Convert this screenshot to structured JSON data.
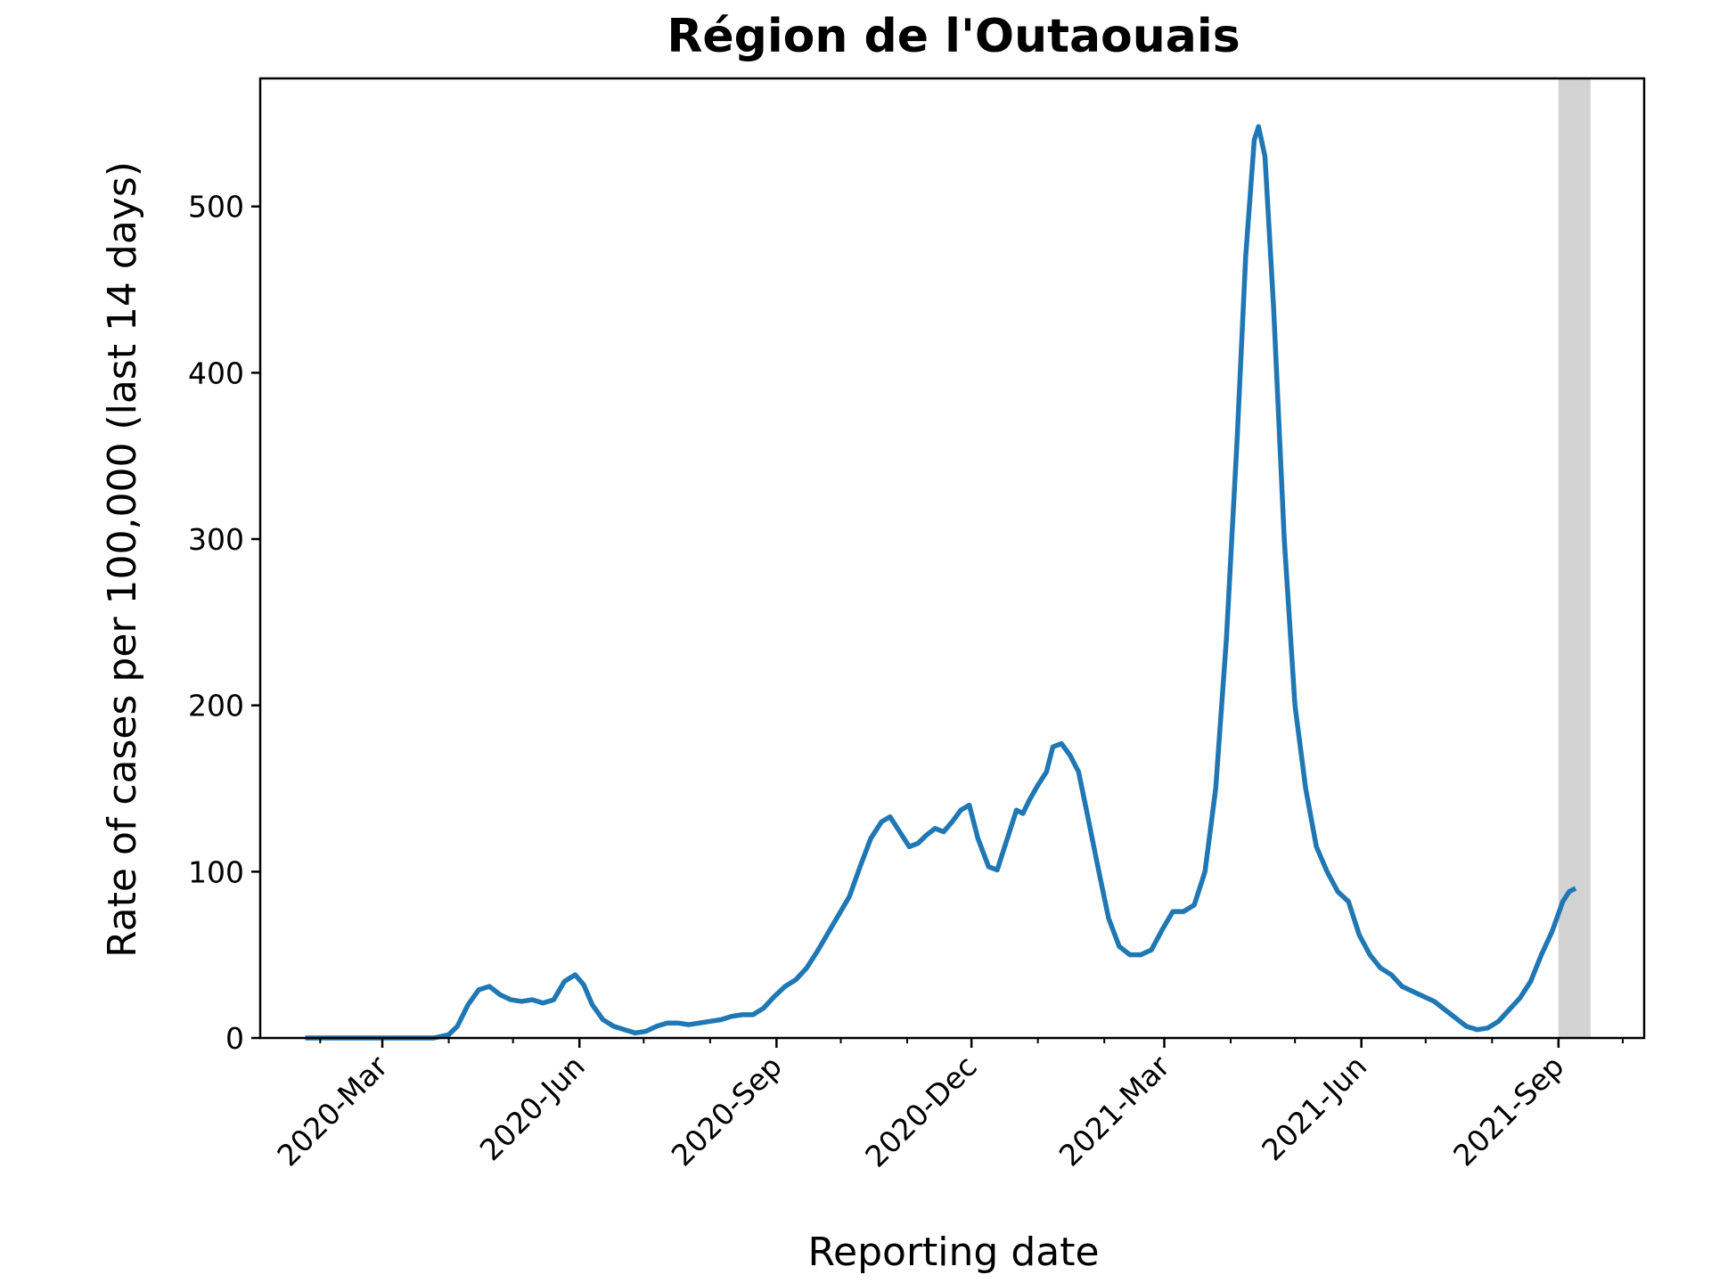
{
  "chart_data": {
    "type": "line",
    "title": "Région de l'Outaouais",
    "xlabel": "Reporting date",
    "ylabel": "Rate of cases per 100,000 (last 14 days)",
    "ylim": [
      0,
      577
    ],
    "yticks": [
      0,
      100,
      200,
      300,
      400,
      500
    ],
    "xlim": [
      "2020-01-04",
      "2021-10-11"
    ],
    "xticks": [
      {
        "date": "2020-03-01",
        "label": "2020-Mar"
      },
      {
        "date": "2020-06-01",
        "label": "2020-Jun"
      },
      {
        "date": "2020-09-01",
        "label": "2020-Sep"
      },
      {
        "date": "2020-12-01",
        "label": "2020-Dec"
      },
      {
        "date": "2021-03-01",
        "label": "2021-Mar"
      },
      {
        "date": "2021-06-01",
        "label": "2021-Jun"
      },
      {
        "date": "2021-09-01",
        "label": "2021-Sep"
      }
    ],
    "minor_ticks": [
      "2020-02-01",
      "2020-04-01",
      "2020-05-01",
      "2020-07-01",
      "2020-08-01",
      "2020-10-01",
      "2020-11-01",
      "2021-01-01",
      "2021-02-01",
      "2021-04-01",
      "2021-05-01",
      "2021-07-01",
      "2021-08-01",
      "2021-10-01"
    ],
    "shaded_region": {
      "start": "2021-09-01",
      "end": "2021-09-16",
      "color": "#d3d3d3"
    },
    "series": [
      {
        "color": "#1f77b4",
        "points": [
          [
            "2020-01-25",
            0
          ],
          [
            "2020-02-15",
            0
          ],
          [
            "2020-03-15",
            0
          ],
          [
            "2020-03-25",
            0
          ],
          [
            "2020-04-01",
            2
          ],
          [
            "2020-04-05",
            7
          ],
          [
            "2020-04-10",
            20
          ],
          [
            "2020-04-15",
            29
          ],
          [
            "2020-04-20",
            31
          ],
          [
            "2020-04-25",
            26
          ],
          [
            "2020-04-30",
            23
          ],
          [
            "2020-05-05",
            22
          ],
          [
            "2020-05-10",
            23
          ],
          [
            "2020-05-15",
            21
          ],
          [
            "2020-05-20",
            23
          ],
          [
            "2020-05-25",
            34
          ],
          [
            "2020-05-30",
            38
          ],
          [
            "2020-06-03",
            32
          ],
          [
            "2020-06-07",
            20
          ],
          [
            "2020-06-12",
            11
          ],
          [
            "2020-06-17",
            7
          ],
          [
            "2020-06-22",
            5
          ],
          [
            "2020-06-27",
            3
          ],
          [
            "2020-07-02",
            4
          ],
          [
            "2020-07-07",
            7
          ],
          [
            "2020-07-12",
            9
          ],
          [
            "2020-07-17",
            9
          ],
          [
            "2020-07-22",
            8
          ],
          [
            "2020-07-27",
            9
          ],
          [
            "2020-08-01",
            10
          ],
          [
            "2020-08-06",
            11
          ],
          [
            "2020-08-11",
            13
          ],
          [
            "2020-08-16",
            14
          ],
          [
            "2020-08-21",
            14
          ],
          [
            "2020-08-26",
            18
          ],
          [
            "2020-08-31",
            25
          ],
          [
            "2020-09-05",
            31
          ],
          [
            "2020-09-10",
            35
          ],
          [
            "2020-09-15",
            42
          ],
          [
            "2020-09-20",
            52
          ],
          [
            "2020-09-25",
            63
          ],
          [
            "2020-09-30",
            74
          ],
          [
            "2020-10-05",
            85
          ],
          [
            "2020-10-10",
            103
          ],
          [
            "2020-10-15",
            120
          ],
          [
            "2020-10-20",
            130
          ],
          [
            "2020-10-24",
            133
          ],
          [
            "2020-10-28",
            125
          ],
          [
            "2020-11-02",
            115
          ],
          [
            "2020-11-06",
            117
          ],
          [
            "2020-11-10",
            122
          ],
          [
            "2020-11-14",
            126
          ],
          [
            "2020-11-18",
            124
          ],
          [
            "2020-11-22",
            130
          ],
          [
            "2020-11-26",
            137
          ],
          [
            "2020-11-30",
            140
          ],
          [
            "2020-12-04",
            120
          ],
          [
            "2020-12-09",
            103
          ],
          [
            "2020-12-13",
            101
          ],
          [
            "2020-12-17",
            117
          ],
          [
            "2020-12-22",
            137
          ],
          [
            "2020-12-25",
            135
          ],
          [
            "2020-12-28",
            143
          ],
          [
            "2021-01-01",
            152
          ],
          [
            "2021-01-05",
            160
          ],
          [
            "2021-01-08",
            175
          ],
          [
            "2021-01-12",
            177
          ],
          [
            "2021-01-16",
            170
          ],
          [
            "2021-01-20",
            160
          ],
          [
            "2021-01-24",
            135
          ],
          [
            "2021-01-29",
            103
          ],
          [
            "2021-02-03",
            72
          ],
          [
            "2021-02-08",
            55
          ],
          [
            "2021-02-13",
            50
          ],
          [
            "2021-02-18",
            50
          ],
          [
            "2021-02-23",
            53
          ],
          [
            "2021-02-28",
            65
          ],
          [
            "2021-03-05",
            76
          ],
          [
            "2021-03-10",
            76
          ],
          [
            "2021-03-15",
            80
          ],
          [
            "2021-03-20",
            100
          ],
          [
            "2021-03-25",
            150
          ],
          [
            "2021-03-30",
            240
          ],
          [
            "2021-04-04",
            360
          ],
          [
            "2021-04-08",
            470
          ],
          [
            "2021-04-12",
            540
          ],
          [
            "2021-04-14",
            548
          ],
          [
            "2021-04-17",
            530
          ],
          [
            "2021-04-21",
            440
          ],
          [
            "2021-04-26",
            300
          ],
          [
            "2021-05-01",
            200
          ],
          [
            "2021-05-06",
            150
          ],
          [
            "2021-05-11",
            115
          ],
          [
            "2021-05-16",
            100
          ],
          [
            "2021-05-21",
            88
          ],
          [
            "2021-05-26",
            82
          ],
          [
            "2021-05-31",
            62
          ],
          [
            "2021-06-05",
            50
          ],
          [
            "2021-06-10",
            42
          ],
          [
            "2021-06-15",
            38
          ],
          [
            "2021-06-20",
            31
          ],
          [
            "2021-06-25",
            28
          ],
          [
            "2021-06-30",
            25
          ],
          [
            "2021-07-05",
            22
          ],
          [
            "2021-07-10",
            17
          ],
          [
            "2021-07-15",
            12
          ],
          [
            "2021-07-20",
            7
          ],
          [
            "2021-07-25",
            5
          ],
          [
            "2021-07-30",
            6
          ],
          [
            "2021-08-04",
            10
          ],
          [
            "2021-08-09",
            17
          ],
          [
            "2021-08-14",
            24
          ],
          [
            "2021-08-19",
            34
          ],
          [
            "2021-08-24",
            50
          ],
          [
            "2021-08-29",
            64
          ],
          [
            "2021-09-03",
            82
          ],
          [
            "2021-09-06",
            88
          ],
          [
            "2021-09-09",
            90
          ]
        ]
      }
    ]
  }
}
